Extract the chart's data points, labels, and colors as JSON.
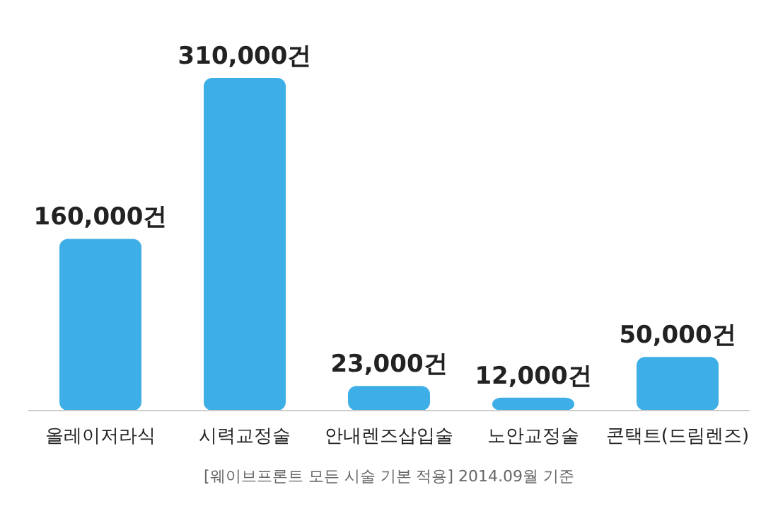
{
  "chart_data": {
    "type": "bar",
    "categories": [
      "올레이저라식",
      "시력교정술",
      "안내렌즈삽입술",
      "노안교정술",
      "콘택트(드림렌즈)"
    ],
    "values": [
      160000,
      310000,
      23000,
      12000,
      50000
    ],
    "value_labels": [
      "160,000건",
      "310,000건",
      "23,000건",
      "12,000건",
      "50,000건"
    ],
    "color": "#3eaee6",
    "annotations": [
      "[웨이브프론트 모든 시술 기본 적용]",
      "2014.09월 기준"
    ]
  }
}
